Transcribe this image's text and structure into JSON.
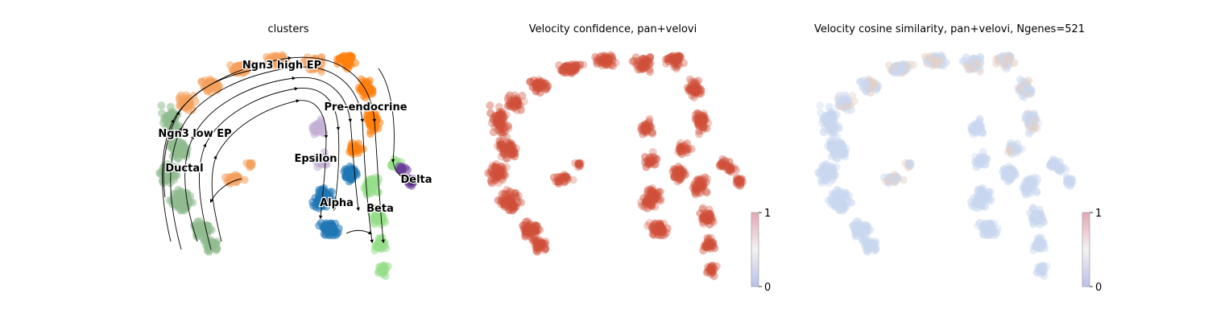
{
  "chart_data": [
    {
      "type": "scatter",
      "title": "clusters",
      "variant": "umap embedding with velocity streamlines",
      "axes_visible": false,
      "streamlines": true,
      "clusters": [
        {
          "name": "Ngn3 high EP",
          "color": "#f4a15d"
        },
        {
          "name": "Pre-endocrine",
          "color": "#ff7f0e"
        },
        {
          "name": "Ngn3 low EP",
          "color": "#8fbc8f"
        },
        {
          "name": "Ductal",
          "color": "#8fbc8f"
        },
        {
          "name": "Epsilon",
          "color": "#c5b0d5"
        },
        {
          "name": "Alpha",
          "color": "#1f77b4"
        },
        {
          "name": "Beta",
          "color": "#98df8a"
        },
        {
          "name": "Delta",
          "color": "#6a3d9a"
        }
      ]
    },
    {
      "type": "scatter",
      "title": "Velocity confidence, pan+velovi",
      "axes_visible": false,
      "colormap": "coolwarm",
      "point_color": "#d0503a",
      "colorbar": {
        "ticks": [
          "1",
          "0"
        ],
        "min": 0,
        "max": 1
      }
    },
    {
      "type": "scatter",
      "title": "Velocity cosine similarity, pan+velovi, Ngenes=521",
      "axes_visible": false,
      "colormap": "coolwarm",
      "point_color": "#c9d7ef",
      "colorbar": {
        "ticks": [
          "1",
          "0"
        ],
        "min": 0,
        "max": 1
      }
    }
  ]
}
